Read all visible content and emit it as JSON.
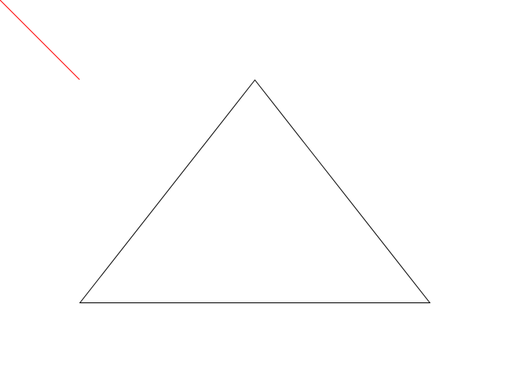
{
  "colors": {
    "background": "#ffffff",
    "triangle_stroke": "#000000",
    "line_stroke": "#ff0000"
  },
  "shapes": {
    "triangle": {
      "fill": "none"
    },
    "diagonal_line": {
      "style": "solid"
    }
  }
}
